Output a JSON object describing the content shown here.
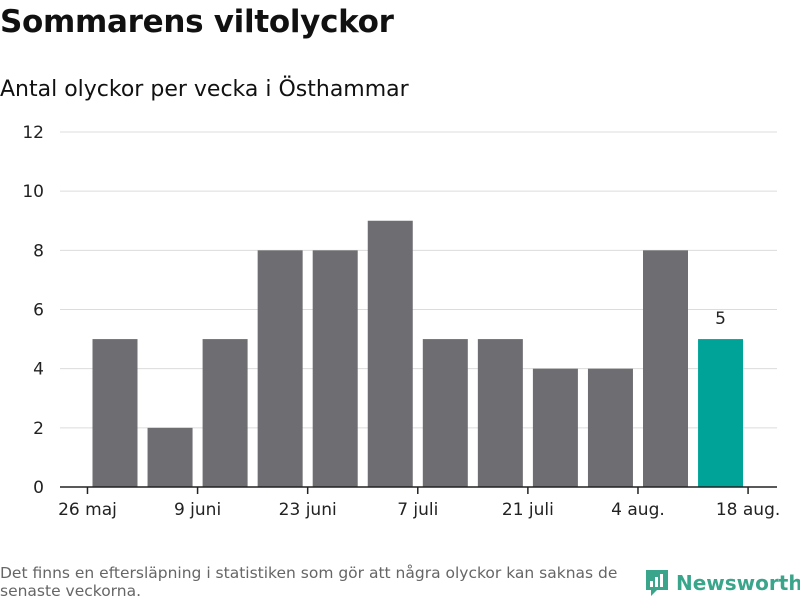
{
  "header": {
    "title": "Sommarens viltolyckor",
    "subtitle": "Antal olyckor per vecka i Östhammar"
  },
  "chart_data": {
    "type": "bar",
    "title": "Sommarens viltolyckor",
    "subtitle": "Antal olyckor per vecka i Östhammar",
    "xlabel": "",
    "ylabel": "",
    "ylim": [
      0,
      12
    ],
    "y_ticks": [
      0,
      2,
      4,
      6,
      8,
      10,
      12
    ],
    "x_tick_labels": [
      "26 maj",
      "9 juni",
      "23 juni",
      "7 juli",
      "21 juli",
      "4 aug.",
      "18 aug."
    ],
    "categories": [
      "v1",
      "v2",
      "v3",
      "v4",
      "v5",
      "v6",
      "v7",
      "v8",
      "v9",
      "v10",
      "v11",
      "v12"
    ],
    "values": [
      5,
      2,
      5,
      8,
      8,
      9,
      5,
      5,
      4,
      4,
      8,
      5
    ],
    "highlight_last": true,
    "last_value_label": "5",
    "grid": true,
    "colors": {
      "bar": "#6d6d72",
      "highlight": "#00a398",
      "grid": "#dcdcdc",
      "axis": "#222222"
    }
  },
  "footer": {
    "note": "Det finns en eftersläpning i statistiken som gör att några olyckor kan saknas de senaste veckorna.",
    "brand": "Newsworthy",
    "brand_icon": "newsworthy-logo-icon",
    "brand_color": "#3aa58a"
  }
}
